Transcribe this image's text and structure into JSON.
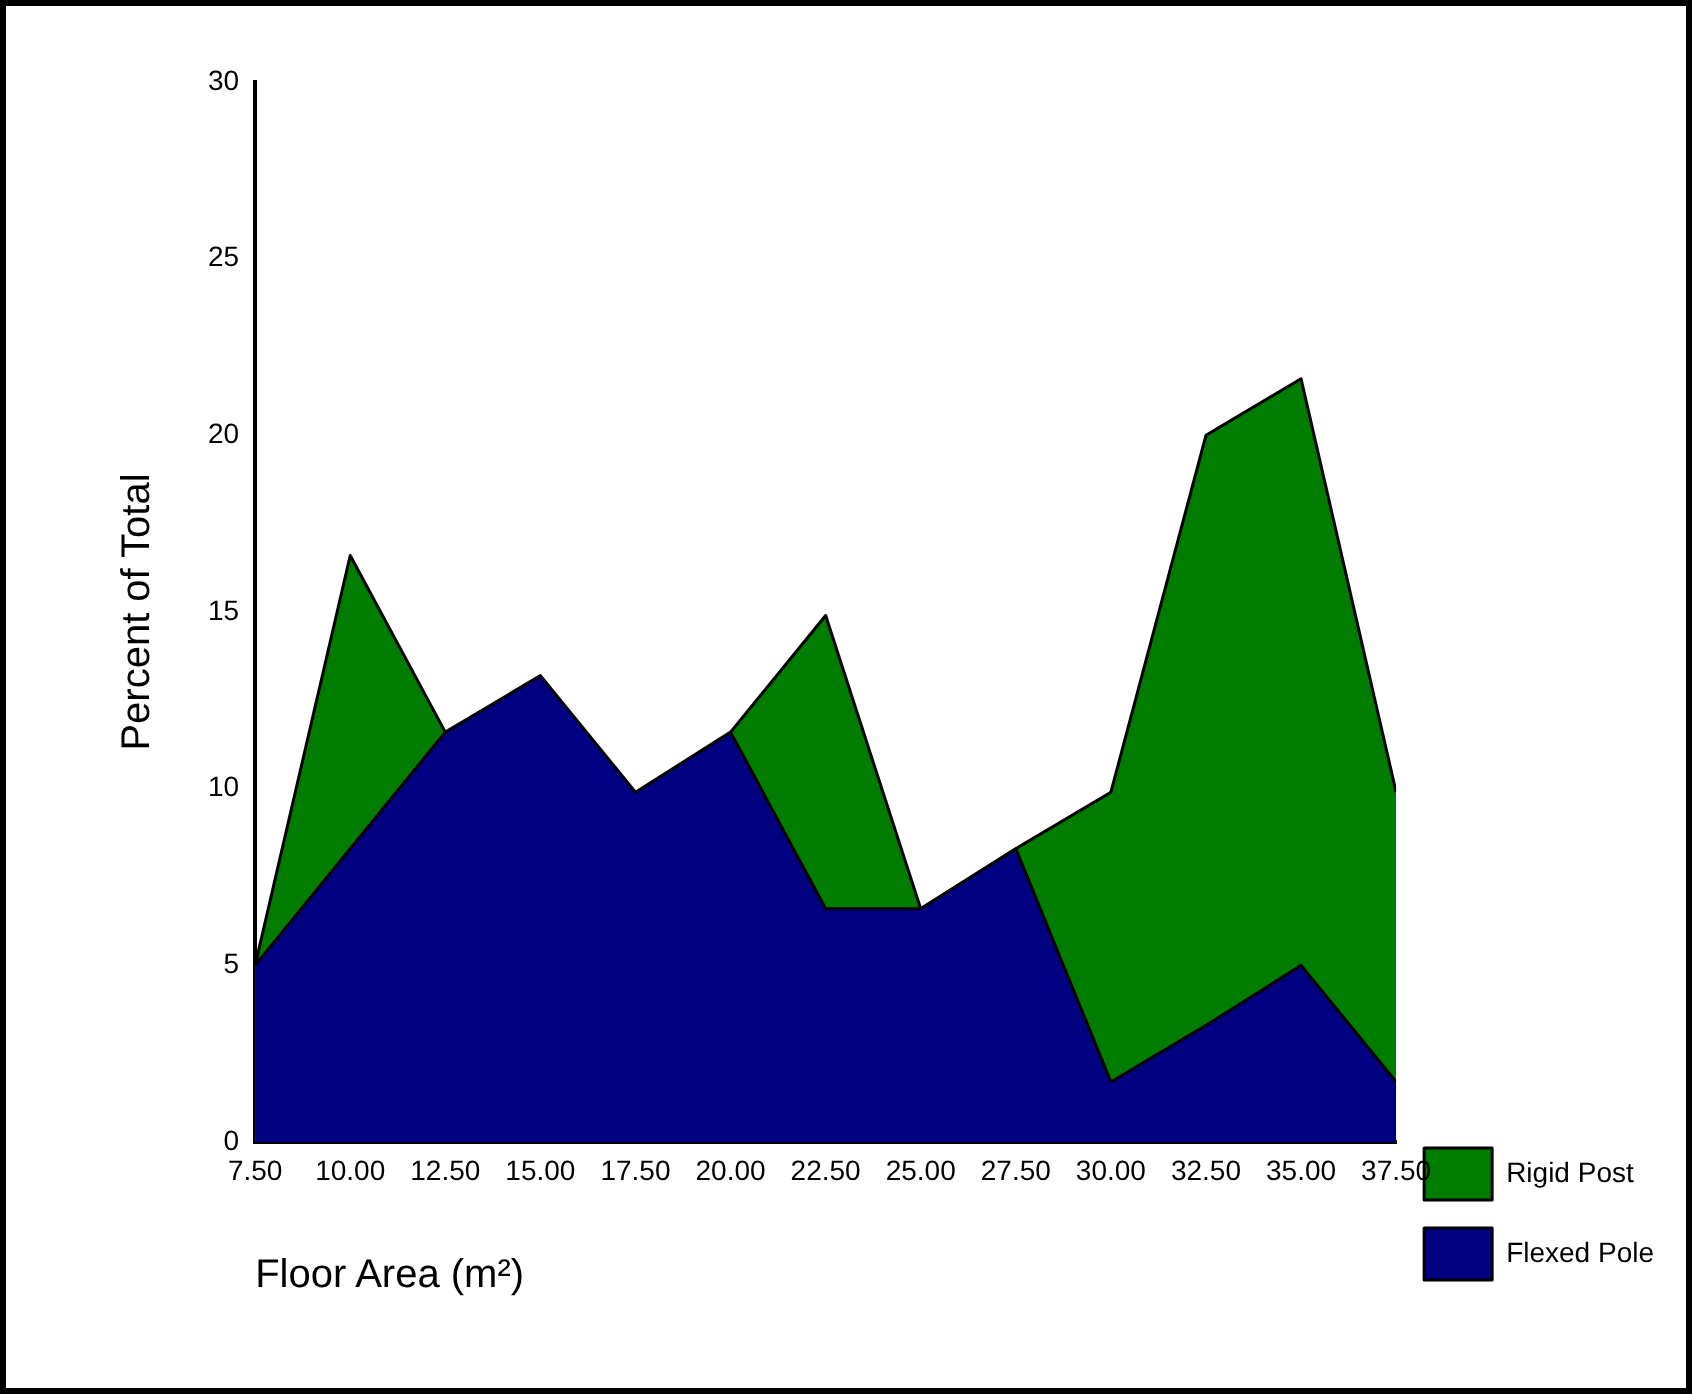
{
  "chart_data": {
    "type": "area",
    "xlabel": "Floor Area (m²)",
    "ylabel": "Percent of Total",
    "x": [
      7.5,
      10,
      12.5,
      15,
      17.5,
      20,
      22.5,
      25,
      27.5,
      30,
      32.5,
      35,
      37.5
    ],
    "series": [
      {
        "name": "Rigid Post",
        "color": "#007c00",
        "values": [
          5,
          16.6,
          11.6,
          null,
          null,
          11.6,
          14.9,
          6.6,
          8.3,
          9.9,
          20,
          21.6,
          9.9
        ]
      },
      {
        "name": "Flexed Pole",
        "color": "#000080",
        "values": [
          5,
          8.3,
          11.6,
          13.2,
          9.9,
          11.6,
          6.6,
          6.6,
          8.3,
          1.7,
          3.3,
          5,
          1.7
        ]
      }
    ],
    "xlim": [
      7.5,
      37.5
    ],
    "xticks": [
      {
        "value": 7.5,
        "label": "7.50"
      },
      {
        "value": 10,
        "label": "10.00"
      },
      {
        "value": 12.5,
        "label": "12.50"
      },
      {
        "value": 15,
        "label": "15.00"
      },
      {
        "value": 17.5,
        "label": "17.50"
      },
      {
        "value": 20,
        "label": "20.00"
      },
      {
        "value": 22.5,
        "label": "22.50"
      },
      {
        "value": 25,
        "label": "25.00"
      },
      {
        "value": 27.5,
        "label": "27.50"
      },
      {
        "value": 30,
        "label": "30.00"
      },
      {
        "value": 32.5,
        "label": "32.50"
      },
      {
        "value": 35,
        "label": "35.00"
      },
      {
        "value": 37.5,
        "label": "37.50"
      }
    ],
    "ylim": [
      0,
      30
    ],
    "yticks": [
      0,
      5,
      10,
      15,
      20,
      25,
      30
    ],
    "grid": false,
    "legend": "bottom right",
    "marker": "none"
  }
}
